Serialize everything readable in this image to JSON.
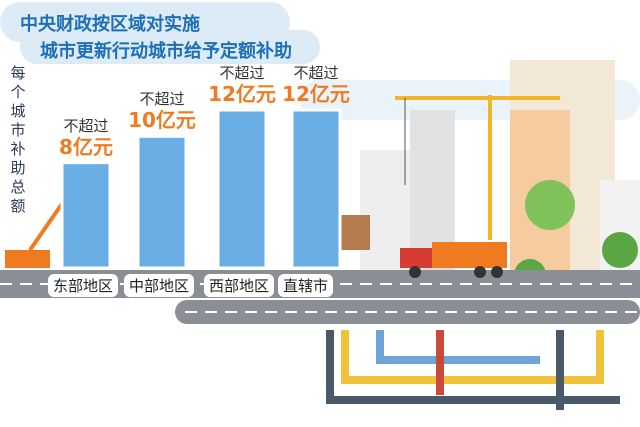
{
  "title_lines": [
    "中央财政按区域对实施",
    "城市更新行动城市给予定额补助"
  ],
  "chart_data": {
    "type": "bar",
    "title": "中央财政按区域对实施城市更新行动城市给予定额补助",
    "ylabel": "每个城市补助总额",
    "categories": [
      "东部地区",
      "中部地区",
      "西部地区",
      "直辖市"
    ],
    "values": [
      8,
      10,
      12,
      12
    ],
    "unit": "亿元",
    "value_labels": [
      "8亿元",
      "10亿元",
      "12亿元",
      "12亿元"
    ],
    "prefix": "不超过",
    "ylim": [
      0,
      12
    ],
    "bar_color": "#6aaee6"
  }
}
